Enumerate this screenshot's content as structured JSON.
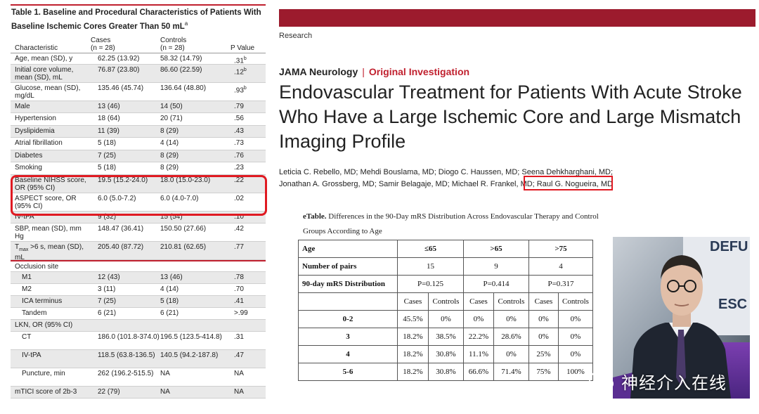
{
  "left_table": {
    "title": "Table 1. Baseline and Procedural Characteristics of Patients With Baseline Ischemic Cores Greater Than 50 mL",
    "title_sup": "a",
    "headers": {
      "characteristic": "Characteristic",
      "cases_line1": "Cases",
      "cases_line2": "(n = 28)",
      "controls_line1": "Controls",
      "controls_line2": "(n = 28)",
      "pvalue": "P Value"
    },
    "rows": [
      {
        "c": "Age, mean (SD), y",
        "a": "62.25 (13.92)",
        "b": "58.32 (14.79)",
        "p": ".31",
        "psup": "b"
      },
      {
        "c": "Initial core volume, mean (SD), mL",
        "a": "76.87 (23.80)",
        "b": "86.60 (22.59)",
        "p": ".12",
        "psup": "b"
      },
      {
        "c": "Glucose, mean (SD), mg/dL",
        "a": "135.46 (45.74)",
        "b": "136.64 (48.80)",
        "p": ".93",
        "psup": "b"
      },
      {
        "c": "Male",
        "a": "13 (46)",
        "b": "14 (50)",
        "p": ".79"
      },
      {
        "c": "Hypertension",
        "a": "18 (64)",
        "b": "20 (71)",
        "p": ".56"
      },
      {
        "c": "Dyslipidemia",
        "a": "11 (39)",
        "b": "8 (29)",
        "p": ".43"
      },
      {
        "c": "Atrial fibrillation",
        "a": "5 (18)",
        "b": "4 (14)",
        "p": ".73"
      },
      {
        "c": "Diabetes",
        "a": "7 (25)",
        "b": "8 (29)",
        "p": ".76"
      },
      {
        "c": "Smoking",
        "a": "5 (18)",
        "b": "8 (29)",
        "p": ".23"
      },
      {
        "c": "Baseline NIHSS score, OR (95% CI)",
        "a": "19.5 (15.2-24.0)",
        "b": "18.0 (15.0-23.0)",
        "p": ".22"
      },
      {
        "c": "ASPECT score, OR (95% CI)",
        "a": "6.0 (5.0-7.2)",
        "b": "6.0 (4.0-7.0)",
        "p": ".02"
      },
      {
        "c": "IV-tPA",
        "a": "9 (32)",
        "b": "15 (54)",
        "p": ".10"
      },
      {
        "c": "SBP, mean (SD), mm Hg",
        "a": "148.47 (36.41)",
        "b": "150.50 (27.66)",
        "p": ".42"
      },
      {
        "c_pre": "T",
        "c_sub": "max",
        "c": " >6 s, mean (SD), mL",
        "a": "205.40 (87.72)",
        "b": "210.81 (62.65)",
        "p": ".77"
      },
      {
        "c": "Occlusion site",
        "a": "",
        "b": "",
        "p": ""
      },
      {
        "c": "M1",
        "a": "12 (43)",
        "b": "13 (46)",
        "p": ".78"
      },
      {
        "c": "M2",
        "a": "3 (11)",
        "b": "4 (14)",
        "p": ".70"
      },
      {
        "c": "ICA terminus",
        "a": "7 (25)",
        "b": "5 (18)",
        "p": ".41"
      },
      {
        "c": "Tandem",
        "a": "6 (21)",
        "b": "6 (21)",
        "p": ">.99"
      },
      {
        "c": "LKN, OR (95% CI)",
        "a": "",
        "b": "",
        "p": ""
      },
      {
        "c": "CT",
        "a": "186.0 (101.8-374.0)",
        "b": "196.5 (123.5-414.8)",
        "p": ".31"
      },
      {
        "c": "IV-tPA",
        "a": "118.5 (63.8-136.5)",
        "b": "140.5 (94.2-187.8)",
        "p": ".47"
      },
      {
        "c": "Puncture, min",
        "a": "262 (196.2-515.5)",
        "b": "NA",
        "p": "NA"
      },
      {
        "c": "mTICI score of 2b-3",
        "a": "22 (79)",
        "b": "NA",
        "p": "NA"
      }
    ]
  },
  "article": {
    "section": "Research",
    "journal": "JAMA Neurology",
    "separator": "|",
    "type": "Original Investigation",
    "title_lines": [
      "Endovascular Treatment for Patients With Acute Stroke",
      "Who Have a Large Ischemic Core and Large Mismatch",
      "Imaging Profile"
    ],
    "authors_line1": "Leticia C. Rebello, MD; Mehdi Bouslama, MD; Diogo C. Haussen, MD; Seena Dehkharghani, MD;",
    "authors_line2": "Jonathan A. Grossberg, MD; Samir Belagaje, MD; Michael R. Frankel, MD; Raul G. Nogueira, MD"
  },
  "etable": {
    "caption_bold": "eTable.",
    "caption_rest": " Differences in the 90-Day mRS Distribution Across Endovascular Therapy and Control Groups According to Age",
    "age_label": "Age",
    "ages": [
      "≤65",
      ">65",
      ">75"
    ],
    "pairs_label": "Number of pairs",
    "pairs": [
      "15",
      "9",
      "4"
    ],
    "dist_label": "90-day mRS Distribution",
    "pvalues": [
      "P=0.125",
      "P=0.414",
      "P=0.317"
    ],
    "subheaders": [
      "Cases",
      "Controls",
      "Cases",
      "Controls",
      "Cases",
      "Controls"
    ],
    "rows": [
      {
        "cat": "0-2",
        "vals": [
          "45.5%",
          "0%",
          "0%",
          "0%",
          "0%",
          "0%"
        ]
      },
      {
        "cat": "3",
        "vals": [
          "18.2%",
          "38.5%",
          "22.2%",
          "28.6%",
          "0%",
          "0%"
        ]
      },
      {
        "cat": "4",
        "vals": [
          "18.2%",
          "30.8%",
          "11.1%",
          "0%",
          "25%",
          "0%"
        ]
      },
      {
        "cat": "5-6",
        "vals": [
          "18.2%",
          "30.8%",
          "66.6%",
          "71.4%",
          "75%",
          "100%"
        ]
      }
    ]
  },
  "video": {
    "sign_top": "DEFU",
    "sign_mid": "ESC"
  },
  "watermark": {
    "text": "神经介入在线",
    "icon": "wechat-icon"
  },
  "colors": {
    "accent_red": "#c0202e",
    "band": "#9c1b2d",
    "highlight": "#e01a22"
  }
}
